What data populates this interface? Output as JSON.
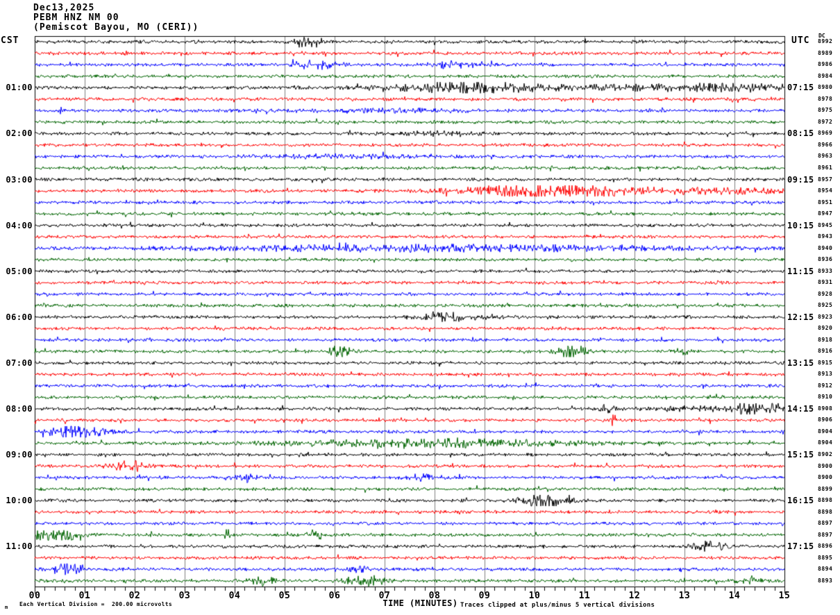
{
  "header": {
    "date": "Dec13,2025",
    "station": "PEBM HNZ NM 00",
    "location": "(Pemiscot Bayou, MO (CERI))"
  },
  "axes": {
    "left_tz": "CST",
    "right_tz": "UTC",
    "dc_header": "DC",
    "x_title": "TIME (MINUTES)",
    "x_ticks": [
      "00",
      "01",
      "02",
      "03",
      "04",
      "05",
      "06",
      "07",
      "08",
      "09",
      "10",
      "11",
      "12",
      "13",
      "14",
      "15"
    ]
  },
  "footer": {
    "scale_mark": "m",
    "scale_text": "Each Vertical Division =  200.00 microvolts",
    "clip_text": "Traces clipped at plus/minus 5 vertical divisions"
  },
  "chart_data": {
    "type": "line",
    "title": "PEBM HNZ NM 00 (Pemiscot Bayou, MO (CERI)) helicorder Dec13,2025",
    "xlabel": "TIME (MINUTES)",
    "x_range_minutes": [
      0,
      15
    ],
    "minutes_per_row": 15,
    "rows_per_hour": 4,
    "left_axis_timezone": "CST",
    "right_axis_timezone": "UTC",
    "grid": true,
    "grid_color": "#7f7f7f",
    "frame_color": "#000000",
    "trace_colors_cycle": [
      "#000000",
      "#ff0000",
      "#0000ff",
      "#006400"
    ],
    "vertical_division_microvolts": 200.0,
    "clip_divisions": 5,
    "rows": [
      {
        "dc": 8992,
        "events": [
          [
            5.4,
            0.2,
            3.0
          ]
        ]
      },
      {
        "dc": 8989
      },
      {
        "dc": 8986,
        "events": [
          [
            5.6,
            0.4,
            2.2
          ],
          [
            8.3,
            0.5,
            1.8
          ]
        ]
      },
      {
        "dc": 8984
      },
      {
        "dc": 8980,
        "cst": "01:00",
        "utc": "07:15",
        "events": [
          [
            8.6,
            1.2,
            2.2
          ],
          [
            11.5,
            4.0,
            1.0
          ],
          [
            14.0,
            1.5,
            1.0
          ]
        ]
      },
      {
        "dc": 8978
      },
      {
        "dc": 8975,
        "events": [
          [
            7.0,
            2.0,
            0.7
          ]
        ]
      },
      {
        "dc": 8972
      },
      {
        "dc": 8969,
        "cst": "02:00",
        "utc": "08:15",
        "events": [
          [
            8.0,
            0.8,
            0.8
          ]
        ]
      },
      {
        "dc": 8966
      },
      {
        "dc": 8963,
        "events": [
          [
            6.0,
            1.5,
            0.8
          ]
        ]
      },
      {
        "dc": 8961
      },
      {
        "dc": 8957,
        "cst": "03:00",
        "utc": "09:15"
      },
      {
        "dc": 8954,
        "events": [
          [
            10.2,
            1.6,
            3.2
          ],
          [
            13.5,
            2.0,
            1.1
          ]
        ]
      },
      {
        "dc": 8951
      },
      {
        "dc": 8947
      },
      {
        "dc": 8945,
        "cst": "04:00",
        "utc": "10:15"
      },
      {
        "dc": 8943
      },
      {
        "dc": 8940,
        "events": [
          [
            8.0,
            4.5,
            1.5
          ]
        ]
      },
      {
        "dc": 8936
      },
      {
        "dc": 8933,
        "cst": "05:00",
        "utc": "11:15"
      },
      {
        "dc": 8931
      },
      {
        "dc": 8928
      },
      {
        "dc": 8925
      },
      {
        "dc": 8923,
        "cst": "06:00",
        "utc": "12:15",
        "events": [
          [
            8.3,
            0.7,
            1.8
          ]
        ]
      },
      {
        "dc": 8920
      },
      {
        "dc": 8918
      },
      {
        "dc": 8916,
        "events": [
          [
            6.05,
            0.25,
            3.0
          ],
          [
            10.75,
            0.3,
            3.5
          ],
          [
            12.95,
            0.15,
            1.5
          ]
        ]
      },
      {
        "dc": 8915,
        "cst": "07:00",
        "utc": "13:15"
      },
      {
        "dc": 8913
      },
      {
        "dc": 8912
      },
      {
        "dc": 8910
      },
      {
        "dc": 8908,
        "cst": "08:00",
        "utc": "14:15",
        "events": [
          [
            11.4,
            0.2,
            1.5
          ],
          [
            13.2,
            1.0,
            1.0
          ],
          [
            14.5,
            0.5,
            3.0
          ]
        ]
      },
      {
        "dc": 8906,
        "events": [
          [
            11.57,
            0.05,
            5.0
          ]
        ]
      },
      {
        "dc": 8904,
        "events": [
          [
            0.8,
            0.5,
            3.5
          ]
        ]
      },
      {
        "dc": 8904,
        "events": [
          [
            8.0,
            2.8,
            1.8
          ]
        ]
      },
      {
        "dc": 8902,
        "cst": "09:00",
        "utc": "15:15"
      },
      {
        "dc": 8900,
        "events": [
          [
            1.8,
            0.35,
            3.0
          ]
        ]
      },
      {
        "dc": 8900,
        "events": [
          [
            4.2,
            0.2,
            2.0
          ],
          [
            7.8,
            0.3,
            1.6
          ]
        ]
      },
      {
        "dc": 8899
      },
      {
        "dc": 8898,
        "cst": "10:00",
        "utc": "16:15",
        "events": [
          [
            10.2,
            0.45,
            3.5
          ],
          [
            10.35,
            0.05,
            9.0
          ]
        ]
      },
      {
        "dc": 8898
      },
      {
        "dc": 8897
      },
      {
        "dc": 8897,
        "events": [
          [
            0.4,
            0.5,
            3.0
          ],
          [
            3.85,
            0.05,
            6.0
          ],
          [
            5.7,
            0.15,
            1.5
          ]
        ]
      },
      {
        "dc": 8896,
        "cst": "11:00",
        "utc": "17:15",
        "events": [
          [
            13.5,
            0.3,
            2.5
          ]
        ]
      },
      {
        "dc": 8895
      },
      {
        "dc": 8894,
        "events": [
          [
            0.65,
            0.3,
            3.0
          ],
          [
            6.5,
            0.2,
            1.2
          ]
        ]
      },
      {
        "dc": 8893,
        "events": [
          [
            4.5,
            0.3,
            2.0
          ],
          [
            6.6,
            0.35,
            3.0
          ],
          [
            14.3,
            0.2,
            2.0
          ]
        ]
      }
    ]
  }
}
